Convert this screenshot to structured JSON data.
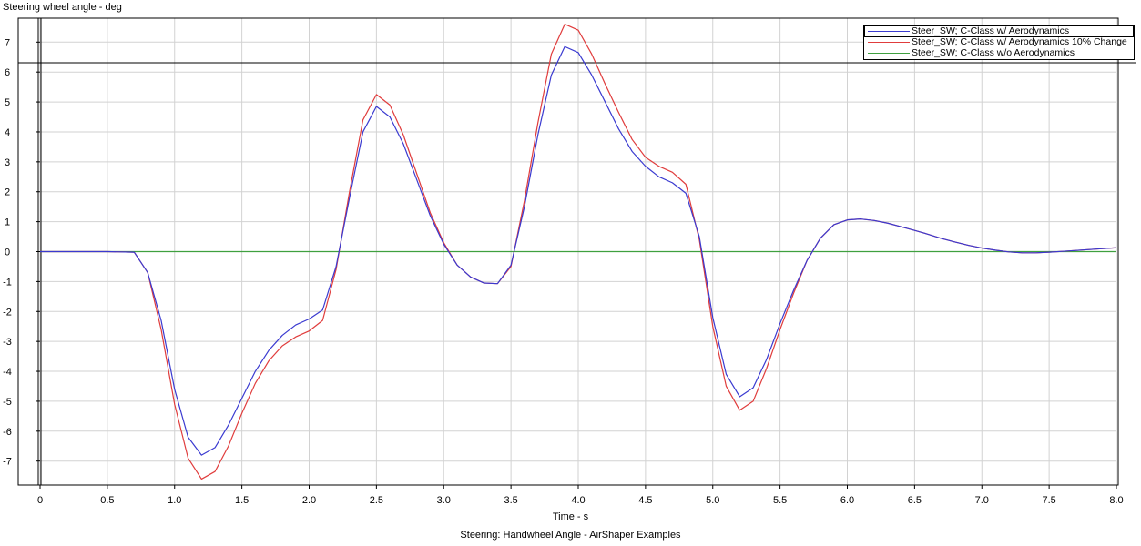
{
  "ylabel": "Steering wheel angle - deg",
  "xlabel": "Time - s",
  "caption": "Steering: Handwheel Angle - AirShaper Examples",
  "chart_data": {
    "type": "line",
    "xlim": [
      0,
      8.0
    ],
    "ylim": [
      -7.8,
      7.8
    ],
    "xticks": [
      "0",
      "0.5",
      "1.0",
      "1.5",
      "2.0",
      "2.5",
      "3.0",
      "3.5",
      "4.0",
      "4.5",
      "5.0",
      "5.5",
      "6.0",
      "6.5",
      "7.0",
      "7.5",
      "8.0"
    ],
    "yticks": [
      "7",
      "6",
      "5",
      "4",
      "3",
      "2",
      "1",
      "0",
      "-1",
      "-2",
      "-3",
      "-4",
      "-5",
      "-6",
      "-7"
    ],
    "grid": true,
    "legend_position": "top-right",
    "series": [
      {
        "name": "Steer_SW; C-Class w/ Aerodynamics",
        "color": "#3a3ad0",
        "x": [
          0,
          0.5,
          0.7,
          0.8,
          0.9,
          1.0,
          1.1,
          1.2,
          1.3,
          1.4,
          1.5,
          1.6,
          1.7,
          1.8,
          1.9,
          2.0,
          2.1,
          2.2,
          2.3,
          2.4,
          2.5,
          2.6,
          2.7,
          2.8,
          2.9,
          3.0,
          3.1,
          3.2,
          3.3,
          3.4,
          3.5,
          3.6,
          3.7,
          3.8,
          3.9,
          4.0,
          4.1,
          4.2,
          4.3,
          4.4,
          4.5,
          4.6,
          4.7,
          4.8,
          4.9,
          5.0,
          5.1,
          5.2,
          5.3,
          5.4,
          5.5,
          5.6,
          5.7,
          5.8,
          5.9,
          6.0,
          6.1,
          6.2,
          6.3,
          6.4,
          6.5,
          6.6,
          6.7,
          6.8,
          6.9,
          7.0,
          7.1,
          7.2,
          7.3,
          7.4,
          7.5,
          7.6,
          7.7,
          7.8,
          7.9,
          8.0
        ],
        "y": [
          0,
          0,
          -0.02,
          -0.7,
          -2.3,
          -4.6,
          -6.2,
          -6.8,
          -6.55,
          -5.8,
          -4.9,
          -4.0,
          -3.3,
          -2.8,
          -2.45,
          -2.25,
          -1.95,
          -0.5,
          1.8,
          4.0,
          4.85,
          4.5,
          3.6,
          2.4,
          1.2,
          0.25,
          -0.45,
          -0.85,
          -1.05,
          -1.07,
          -0.45,
          1.5,
          3.9,
          5.9,
          6.85,
          6.65,
          5.9,
          5.0,
          4.1,
          3.35,
          2.85,
          2.5,
          2.3,
          1.95,
          0.5,
          -2.2,
          -4.1,
          -4.85,
          -4.55,
          -3.6,
          -2.4,
          -1.3,
          -0.3,
          0.45,
          0.9,
          1.06,
          1.09,
          1.04,
          0.95,
          0.83,
          0.71,
          0.58,
          0.44,
          0.32,
          0.21,
          0.12,
          0.05,
          -0.01,
          -0.04,
          -0.04,
          -0.02,
          0.01,
          0.04,
          0.07,
          0.1,
          0.13
        ]
      },
      {
        "name": "Steer_SW; C-Class w/ Aerodynamics 10% Change",
        "color": "#e03c3c",
        "x": [
          0,
          0.5,
          0.7,
          0.8,
          0.9,
          1.0,
          1.1,
          1.2,
          1.3,
          1.4,
          1.5,
          1.6,
          1.7,
          1.8,
          1.9,
          2.0,
          2.1,
          2.2,
          2.3,
          2.4,
          2.5,
          2.6,
          2.7,
          2.8,
          2.9,
          3.0,
          3.1,
          3.2,
          3.3,
          3.4,
          3.5,
          3.6,
          3.7,
          3.8,
          3.9,
          4.0,
          4.1,
          4.2,
          4.3,
          4.4,
          4.5,
          4.6,
          4.7,
          4.8,
          4.9,
          5.0,
          5.1,
          5.2,
          5.3,
          5.4,
          5.5,
          5.6,
          5.7,
          5.8,
          5.9,
          6.0,
          6.1,
          6.2,
          6.3,
          6.4,
          6.5,
          6.6,
          6.7,
          6.8,
          6.9,
          7.0,
          7.1,
          7.2,
          7.3,
          7.4,
          7.5,
          7.6,
          7.7,
          7.8,
          7.9,
          8.0
        ],
        "y": [
          0,
          0,
          -0.02,
          -0.7,
          -2.6,
          -5.1,
          -6.9,
          -7.6,
          -7.35,
          -6.5,
          -5.4,
          -4.4,
          -3.65,
          -3.15,
          -2.85,
          -2.65,
          -2.3,
          -0.6,
          2.0,
          4.4,
          5.25,
          4.9,
          3.9,
          2.6,
          1.3,
          0.3,
          -0.45,
          -0.85,
          -1.05,
          -1.07,
          -0.5,
          1.7,
          4.3,
          6.6,
          7.6,
          7.4,
          6.6,
          5.6,
          4.65,
          3.75,
          3.15,
          2.85,
          2.65,
          2.25,
          0.4,
          -2.5,
          -4.5,
          -5.3,
          -5.0,
          -3.9,
          -2.6,
          -1.4,
          -0.3,
          0.45,
          0.9,
          1.06,
          1.09,
          1.04,
          0.95,
          0.83,
          0.71,
          0.58,
          0.44,
          0.32,
          0.21,
          0.12,
          0.05,
          -0.01,
          -0.04,
          -0.04,
          -0.02,
          0.01,
          0.04,
          0.07,
          0.1,
          0.13
        ]
      },
      {
        "name": "Steer_SW; C-Class w/o Aerodynamics",
        "color": "#3fa03f",
        "x": [
          0,
          8.0
        ],
        "y": [
          0,
          0
        ]
      }
    ]
  }
}
